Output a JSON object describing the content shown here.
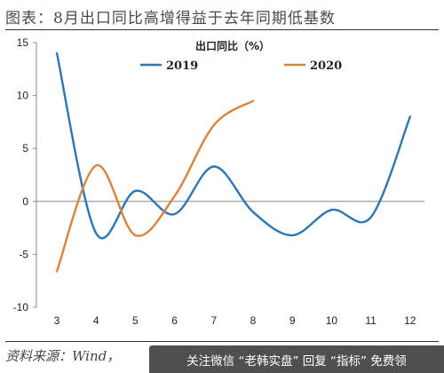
{
  "header": {
    "title": "图表：8月出口同比高增得益于去年同期低基数"
  },
  "footer": {
    "source": "资料来源：Wind，",
    "watermark": "关注微信 “老韩实盘” 回复 “指标” 免费领"
  },
  "chart_data": {
    "type": "line",
    "title": "出口同比（%）",
    "xlabel": "",
    "ylabel": "",
    "categories": [
      "3",
      "4",
      "5",
      "6",
      "7",
      "8",
      "9",
      "10",
      "11",
      "12"
    ],
    "ylim": [
      -10,
      15
    ],
    "yticks": [
      15,
      10,
      5,
      0,
      -5,
      -10
    ],
    "legend_position": "top",
    "series": [
      {
        "name": "2019",
        "color": "#2e75b6",
        "x": [
          3,
          4,
          5,
          6,
          7,
          8,
          9,
          10,
          11,
          12
        ],
        "values": [
          14.0,
          -3.0,
          1.0,
          -1.2,
          3.3,
          -1.0,
          -3.2,
          -0.8,
          -1.5,
          8.0
        ]
      },
      {
        "name": "2020",
        "color": "#d9843b",
        "x": [
          3,
          4,
          5,
          6,
          7,
          8
        ],
        "values": [
          -6.6,
          3.4,
          -3.2,
          0.5,
          7.2,
          9.5
        ]
      }
    ]
  }
}
